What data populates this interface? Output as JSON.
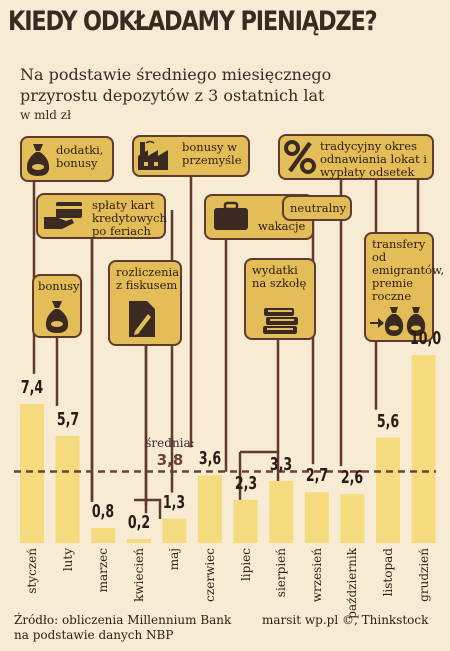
{
  "title": "KIEDY ODKŁADAMY PIENIĄDZE?",
  "subtitle": "Na podstawie średniego miesięcznego przyrostu depozytów z 3 ostatnich lat",
  "unit": "w mld zł",
  "average": {
    "label": "średnia:",
    "value": "3,8"
  },
  "source": [
    "Źródło: obliczenia Millennium Bank",
    "na podstawie danych NBP"
  ],
  "credit": "marsit wp.pl ©, Thinkstock",
  "annotations": {
    "jan_bonus": "dodatki, bonusy",
    "feb_cards": "spłaty kart kredytowych po feriach",
    "feb_bonus": "bonusy",
    "apr_tax": "rozliczenia z fiskusem",
    "jun_industry": "bonusy w przemyśle",
    "jul_holidays": "wakacje",
    "aug_school": "wydatki na szkołę",
    "oct_neutral": "neutralny",
    "oct_deposits": "tradycyjny okres odnawiania lokat i wypłaty odsetek",
    "dec_transfers": "transfery od emigrantów, premie roczne"
  },
  "colors": {
    "bar": "#f4dc7e",
    "box": "#e2bd58",
    "line": "#5e3b2e",
    "background": "#f7ebd3",
    "avg_line": "#6b4336"
  },
  "icons": [
    "money-bag-icon",
    "card-hand-icon",
    "document-pencil-icon",
    "factory-icon",
    "suitcase-icon",
    "books-icon",
    "percent-icon",
    "transfer-icon"
  ],
  "chart_data": {
    "type": "bar",
    "categories": [
      "styczeń",
      "luty",
      "marzec",
      "kwiecień",
      "maj",
      "czerwiec",
      "lipiec",
      "sierpień",
      "wrzesień",
      "październik",
      "listopad",
      "grudzień"
    ],
    "values": [
      7.4,
      5.7,
      0.8,
      0.2,
      1.3,
      3.6,
      2.3,
      3.3,
      2.7,
      2.6,
      5.6,
      10.0
    ],
    "labels": [
      "7,4",
      "5,7",
      "0,8",
      "0,2",
      "1,3",
      "3,6",
      "2,3",
      "3,3",
      "2,7",
      "2,6",
      "5,6",
      "10,0"
    ],
    "average": 3.8,
    "ylim": [
      0,
      10
    ],
    "title": "KIEDY ODKŁADAMY PIENIĄDZE?",
    "ylabel": "w mld zł"
  }
}
